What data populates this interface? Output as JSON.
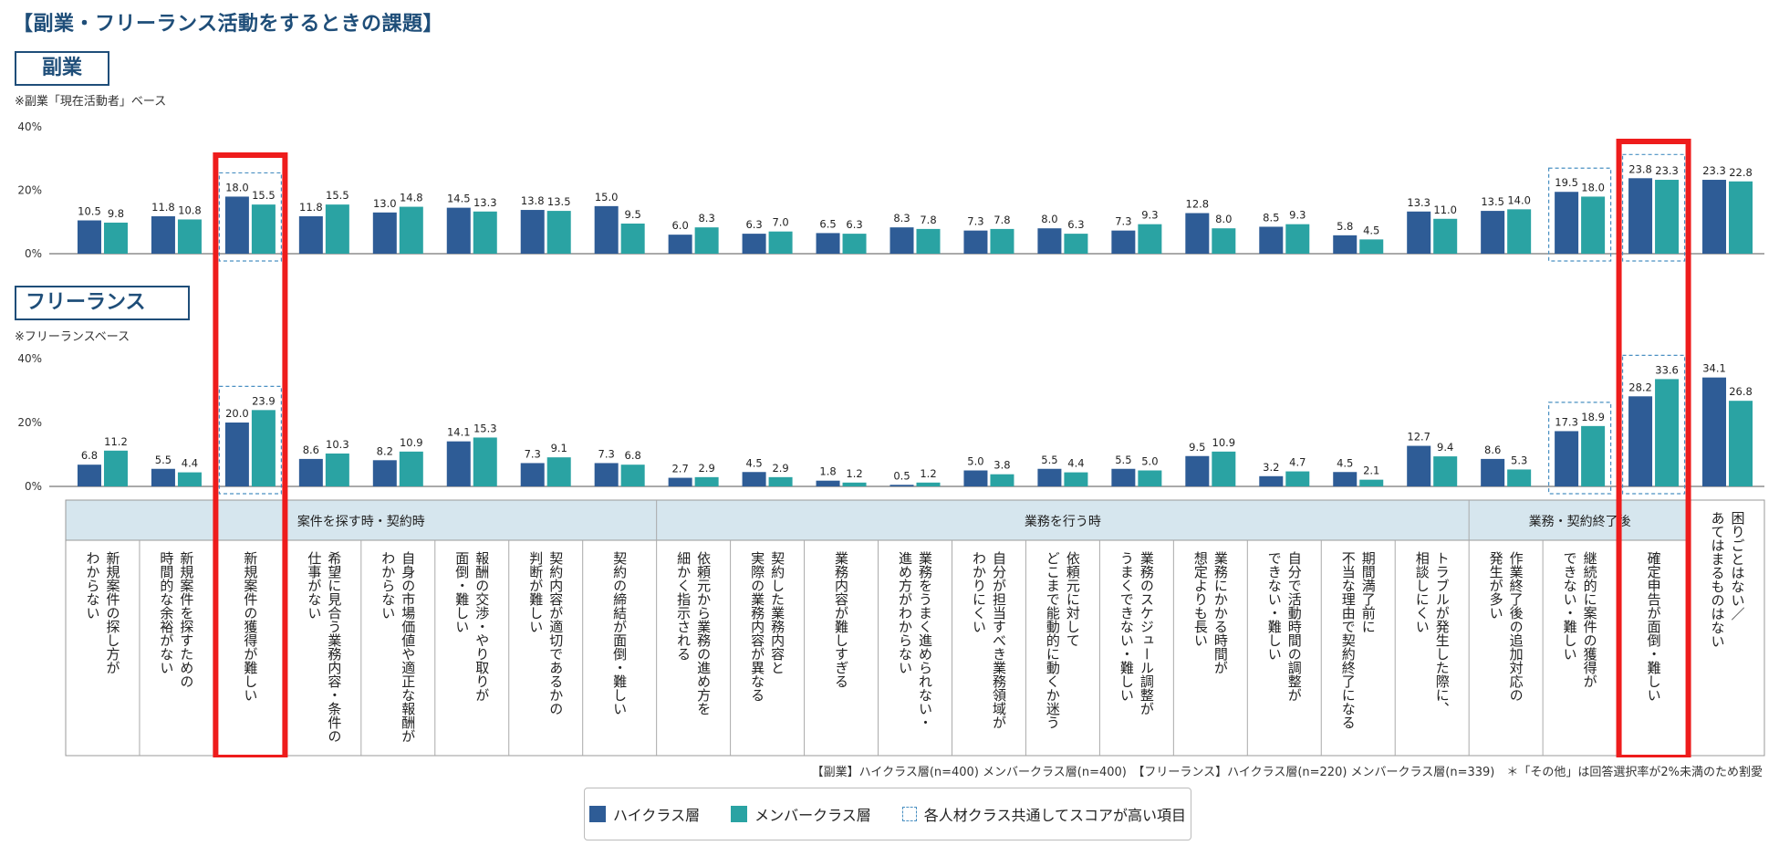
{
  "title": "【副業・フリーランス活動をするときの課題】",
  "sections": {
    "side": {
      "label": "副業",
      "basis": "※副業「現在活動者」ベース"
    },
    "free": {
      "label": "フリーランス",
      "basis": "※フリーランスベース"
    }
  },
  "footnote": "【副業】ハイクラス層(n=400) メンバークラス層(n=400)　【フリーランス】ハイクラス層(n=220) メンバークラス層(n=339)　＊「その他」は回答選択率が2%未満のため割愛",
  "legend": {
    "high": "ハイクラス層",
    "member": "メンバークラス層",
    "common": "各人材クラス共通してスコアが高い項目"
  },
  "colors": {
    "high": "#2e5c96",
    "member": "#2aa3a3",
    "highlight_red": "#ee1c1c",
    "dash": "#4a90c2",
    "group_bg": "#d6e6ee",
    "title": "#1f4e79"
  },
  "chart_data": [
    {
      "type": "bar",
      "title": "副業",
      "ylim": [
        0,
        40
      ],
      "ytick_labels": [
        "40%",
        "20%",
        "0%"
      ],
      "categories": [
        "新規案件の探し方がわからない",
        "新規案件を探すための時間的な余裕がない",
        "新規案件の獲得が難しい",
        "希望に見合う業務内容・条件の仕事がない",
        "自身の市場価値や適正な報酬がわからない",
        "報酬の交渉・やり取りが面倒・難しい",
        "契約内容が適切であるかの判断が難しい",
        "契約の締結が面倒・難しい",
        "依頼元から業務の進め方を細かく指示される",
        "契約した業務内容と実際の業務内容が異なる",
        "業務内容が難しすぎる",
        "業務をうまく進められない・進め方がわからない",
        "自分が担当すべき業務領域がわかりにくい",
        "依頼元に対してどこまで能動的に動くか迷う",
        "業務のスケジュール調整がうまくできない・難しい",
        "業務にかかる時間が想定よりも長い",
        "自分で活動時間の調整ができない・難しい",
        "期間満了前に不当な理由で契約終了になる",
        "トラブルが発生した際に、相談しにくい",
        "作業終了後の追加対応の発生が多い",
        "継続的に案件の獲得ができない・難しい",
        "確定申告が面倒・難しい",
        "困りごとはない／あてはまるものはない"
      ],
      "series": [
        {
          "name": "ハイクラス層",
          "values": [
            10.5,
            11.8,
            18.0,
            11.8,
            13.0,
            14.5,
            13.8,
            15.0,
            6.0,
            6.3,
            6.5,
            8.3,
            7.3,
            8.0,
            7.3,
            12.8,
            8.5,
            5.8,
            13.3,
            13.5,
            19.5,
            23.8,
            23.3
          ]
        },
        {
          "name": "メンバークラス層",
          "values": [
            9.8,
            10.8,
            15.5,
            15.5,
            14.8,
            13.3,
            13.5,
            9.5,
            8.3,
            7.0,
            6.3,
            7.8,
            7.8,
            6.3,
            9.3,
            8.0,
            9.3,
            4.5,
            11.0,
            14.0,
            18.0,
            23.3,
            22.8
          ]
        }
      ],
      "value_labels": {
        "high": [
          "10.5",
          "11.8",
          "18.0",
          "11.8",
          "13.0",
          "14.5",
          "13.8",
          "15.0",
          "6.0",
          "6.3",
          "6.5",
          "8.3",
          "7.3",
          "8.0",
          "7.3",
          "12.8",
          "8.5",
          "5.8",
          "13.3",
          "13.5",
          "19.5",
          "23.8",
          "23.3"
        ],
        "member": [
          "9.8",
          "10.8",
          "15.5",
          "15.5",
          "14.8",
          "13.3",
          "13.5",
          "9.5",
          "8.3",
          "7.0",
          "6.3",
          "7.8",
          "7.8",
          "6.3",
          "9.3",
          "8.0",
          "9.3",
          "4.5",
          "11.0",
          "14.0",
          "18.0",
          "23.3",
          "22.8"
        ]
      },
      "dashed_highlight_items": [
        2,
        20,
        21
      ]
    },
    {
      "type": "bar",
      "title": "フリーランス",
      "ylim": [
        0,
        40
      ],
      "ytick_labels": [
        "40%",
        "20%",
        "0%"
      ],
      "series": [
        {
          "name": "ハイクラス層",
          "values": [
            6.8,
            5.5,
            20.0,
            8.6,
            8.2,
            14.1,
            7.3,
            7.3,
            2.7,
            4.5,
            1.8,
            0.5,
            5.0,
            5.5,
            5.5,
            9.5,
            3.2,
            4.5,
            12.7,
            8.6,
            17.3,
            28.2,
            34.1
          ]
        },
        {
          "name": "メンバークラス層",
          "values": [
            11.2,
            4.4,
            23.9,
            10.3,
            10.9,
            15.3,
            9.1,
            6.8,
            2.9,
            2.9,
            1.2,
            1.2,
            3.8,
            4.4,
            5.0,
            10.9,
            4.7,
            2.1,
            9.4,
            5.3,
            18.9,
            33.6,
            26.8
          ]
        }
      ],
      "value_labels": {
        "high": [
          "6.8",
          "5.5",
          "20.0",
          "8.6",
          "8.2",
          "14.1",
          "7.3",
          "7.3",
          "2.7",
          "4.5",
          "1.8",
          "0.5",
          "5.0",
          "5.5",
          "5.5",
          "9.5",
          "3.2",
          "4.5",
          "12.7",
          "8.6",
          "17.3",
          "28.2",
          "34.1"
        ],
        "member": [
          "11.2",
          "4.4",
          "23.9",
          "10.3",
          "10.9",
          "15.3",
          "9.1",
          "6.8",
          "2.9",
          "2.9",
          "1.2",
          "1.2",
          "3.8",
          "4.4",
          "5.0",
          "10.9",
          "4.7",
          "2.1",
          "9.4",
          "5.3",
          "18.9",
          "33.6",
          "26.8"
        ]
      },
      "dashed_highlight_items": [
        2,
        20,
        21
      ]
    }
  ],
  "category_groups": [
    {
      "label": "案件を探す時・契約時",
      "start": 0,
      "end": 7
    },
    {
      "label": "業務を行う時",
      "start": 8,
      "end": 18
    },
    {
      "label": "業務・契約終了後",
      "start": 19,
      "end": 21
    }
  ],
  "category_label_lines": [
    [
      "新規案件の探し方が",
      "わからない"
    ],
    [
      "新規案件を探すための",
      "時間的な余裕がない"
    ],
    [
      "新規案件の獲得が難しい"
    ],
    [
      "希望に見合う業務内容・条件の",
      "仕事がない"
    ],
    [
      "自身の市場価値や適正な報酬が",
      "わからない"
    ],
    [
      "報酬の交渉・やり取りが",
      "面倒・難しい"
    ],
    [
      "契約内容が適切であるかの",
      "判断が難しい"
    ],
    [
      "契約の締結が面倒・難しい"
    ],
    [
      "依頼元から業務の進め方を",
      "細かく指示される"
    ],
    [
      "契約した業務内容と",
      "実際の業務内容が異なる"
    ],
    [
      "業務内容が難しすぎる"
    ],
    [
      "業務をうまく進められない・",
      "進め方がわからない"
    ],
    [
      "自分が担当すべき業務領域が",
      "わかりにくい"
    ],
    [
      "依頼元に対して",
      "どこまで能動的に動くか迷う"
    ],
    [
      "業務のスケジュール調整が",
      "うまくできない・難しい"
    ],
    [
      "業務にかかる時間が",
      "想定よりも長い"
    ],
    [
      "自分で活動時間の調整が",
      "できない・難しい"
    ],
    [
      "期間満了前に",
      "不当な理由で契約終了になる"
    ],
    [
      "トラブルが発生した際に、",
      "相談しにくい"
    ],
    [
      "作業終了後の追加対応の",
      "発生が多い"
    ],
    [
      "継続的に案件の獲得が",
      "できない・難しい"
    ],
    [
      "確定申告が面倒・難しい"
    ],
    [
      "困りごとはない／",
      "あてはまるものはない"
    ]
  ],
  "red_highlight_items": [
    2,
    21
  ]
}
